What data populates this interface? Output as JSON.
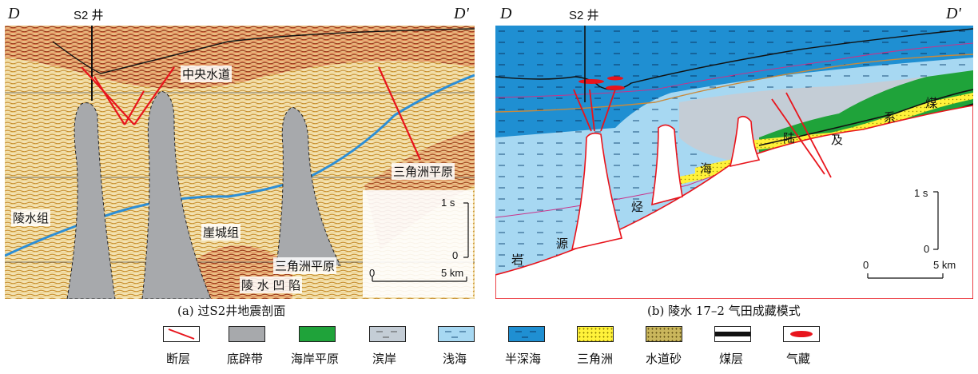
{
  "panel_a": {
    "left_letter": "D",
    "right_letter": "D'",
    "well_label": "S2 井",
    "labels": {
      "central_channel": "中央水道",
      "delta_plain_right": "三角洲平原",
      "lingshui_fm": "陵水组",
      "yacheng_fm": "崖城组",
      "delta_plain_bottom": "三角洲平原",
      "lingshui_sag": "陵 水 凹 陷"
    },
    "scale": {
      "time_top": "1 s",
      "time_bottom": "0",
      "dist_left": "0",
      "dist_right": "5 km"
    },
    "caption": "(a) 过S2井地震剖面"
  },
  "panel_b": {
    "left_letter": "D",
    "right_letter": "D'",
    "well_label": "S2 井",
    "labels": {
      "source_rock_chars": [
        "岩",
        "源",
        "烃",
        "海"
      ],
      "coastal_chars": [
        "陆",
        "及",
        "系",
        "煤"
      ]
    },
    "scale": {
      "time_top": "1 s",
      "time_bottom": "0",
      "dist_left": "0",
      "dist_right": "5 km"
    },
    "caption": "(b) 陵水 17–2 气田成藏模式"
  },
  "legend": [
    {
      "label": "断层",
      "icon": "fault-line",
      "color": "#e8141c"
    },
    {
      "label": "底辟带",
      "icon": "gray-fill",
      "color": "#a7a9ac"
    },
    {
      "label": "海岸平原",
      "icon": "green-fill",
      "color": "#1fa33a"
    },
    {
      "label": "滨岸",
      "icon": "shore-fill",
      "color": "#c4cdd6"
    },
    {
      "label": "浅海",
      "icon": "shallow-sea-fill",
      "color": "#a7d8f2"
    },
    {
      "label": "半深海",
      "icon": "bathyal-fill",
      "color": "#1f8fd2"
    },
    {
      "label": "三角洲",
      "icon": "delta-fill",
      "color": "#fff23a"
    },
    {
      "label": "水道砂",
      "icon": "channel-sand-fill",
      "color": "#c9b65c"
    },
    {
      "label": "煤层",
      "icon": "coal-fill",
      "color": "#111111"
    },
    {
      "label": "气藏",
      "icon": "gas-icon",
      "color": "#e8141c"
    }
  ]
}
